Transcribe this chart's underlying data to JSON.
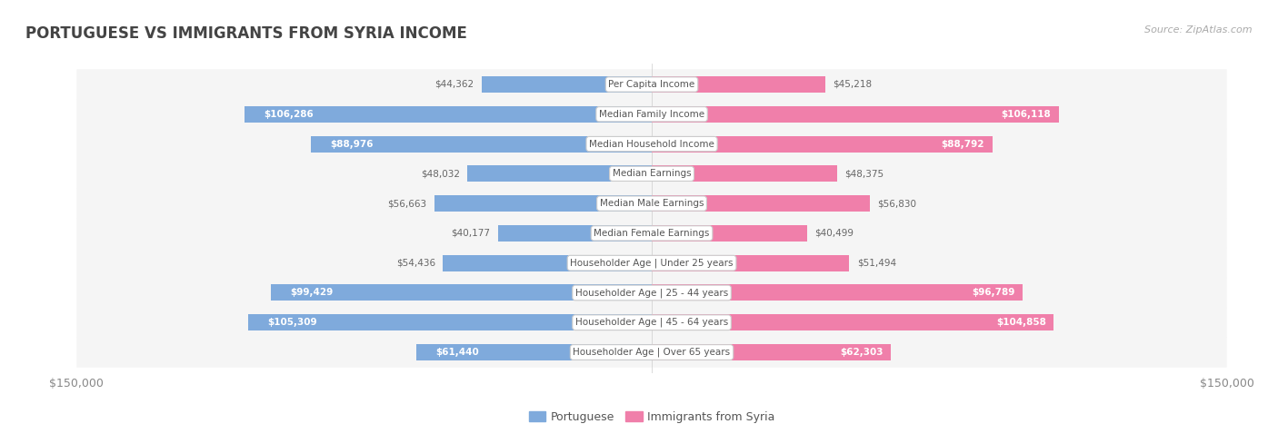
{
  "title": "PORTUGUESE VS IMMIGRANTS FROM SYRIA INCOME",
  "source": "Source: ZipAtlas.com",
  "categories": [
    "Per Capita Income",
    "Median Family Income",
    "Median Household Income",
    "Median Earnings",
    "Median Male Earnings",
    "Median Female Earnings",
    "Householder Age | Under 25 years",
    "Householder Age | 25 - 44 years",
    "Householder Age | 45 - 64 years",
    "Householder Age | Over 65 years"
  ],
  "portuguese_values": [
    44362,
    106286,
    88976,
    48032,
    56663,
    40177,
    54436,
    99429,
    105309,
    61440
  ],
  "syria_values": [
    45218,
    106118,
    88792,
    48375,
    56830,
    40499,
    51494,
    96789,
    104858,
    62303
  ],
  "portuguese_labels": [
    "$44,362",
    "$106,286",
    "$88,976",
    "$48,032",
    "$56,663",
    "$40,177",
    "$54,436",
    "$99,429",
    "$105,309",
    "$61,440"
  ],
  "syria_labels": [
    "$45,218",
    "$106,118",
    "$88,792",
    "$48,375",
    "$56,830",
    "$40,499",
    "$51,494",
    "$96,789",
    "$104,858",
    "$62,303"
  ],
  "x_max": 150000,
  "portuguese_color": "#7faadc",
  "syria_color": "#f07faa",
  "portuguese_color_dark": "#5b8ec4",
  "syria_color_dark": "#e85c8a",
  "row_bg_color": "#f0f0f0",
  "row_bg_alt": "#ffffff",
  "label_bg_color": "#ffffff",
  "title_color": "#333333",
  "axis_label_color": "#999999",
  "bar_height": 0.55,
  "fig_bg": "#ffffff"
}
